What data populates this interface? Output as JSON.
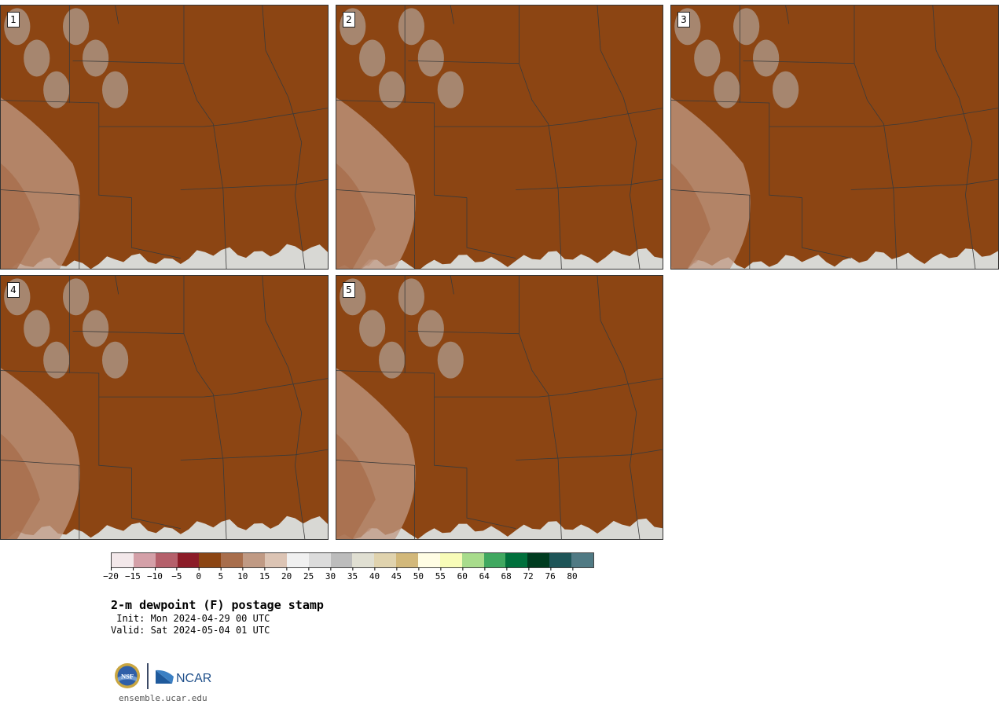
{
  "panels": [
    {
      "number": "1",
      "profile": [
        0.1,
        0.22,
        0.35,
        0.42,
        0.48,
        0.7,
        0.85,
        0.92,
        0.96
      ]
    },
    {
      "number": "2",
      "profile": [
        0.1,
        0.18,
        0.28,
        0.38,
        0.45,
        0.52,
        0.6,
        0.66,
        0.7
      ]
    },
    {
      "number": "3",
      "profile": [
        0.15,
        0.25,
        0.35,
        0.4,
        0.45,
        0.52,
        0.58,
        0.64,
        0.68
      ]
    },
    {
      "number": "4",
      "profile": [
        0.2,
        0.35,
        0.45,
        0.5,
        0.55,
        0.63,
        0.74,
        0.82,
        0.88
      ]
    },
    {
      "number": "5",
      "profile": [
        0.15,
        0.28,
        0.4,
        0.46,
        0.5,
        0.55,
        0.6,
        0.65,
        0.72
      ]
    }
  ],
  "colorbar": {
    "colors": [
      "#f3e8ea",
      "#d4a0a8",
      "#b5606b",
      "#8c1c28",
      "#8c4513",
      "#a86e4c",
      "#c09a84",
      "#dcc4b4",
      "#f0f0f0",
      "#dcdcdc",
      "#bcbcbc",
      "#e0dfd2",
      "#e0d3ae",
      "#d2b87a",
      "#fffde4",
      "#f8fcb8",
      "#a8dc8c",
      "#40a860",
      "#00703c",
      "#003c20",
      "#1e5558",
      "#507a84"
    ],
    "ticks": [
      "−20",
      "−15",
      "−10",
      "−5",
      "0",
      "5",
      "10",
      "15",
      "20",
      "25",
      "30",
      "35",
      "40",
      "45",
      "50",
      "55",
      "60",
      "64",
      "68",
      "72",
      "76",
      "80"
    ]
  },
  "title": "2-m dewpoint (F) postage stamp",
  "init": " Init: Mon 2024-04-29 00 UTC",
  "valid": "Valid: Sat 2024-05-04 01 UTC",
  "logos": {
    "nsf": "NSF",
    "ncar": "NCAR"
  },
  "site": "ensemble.ucar.edu"
}
